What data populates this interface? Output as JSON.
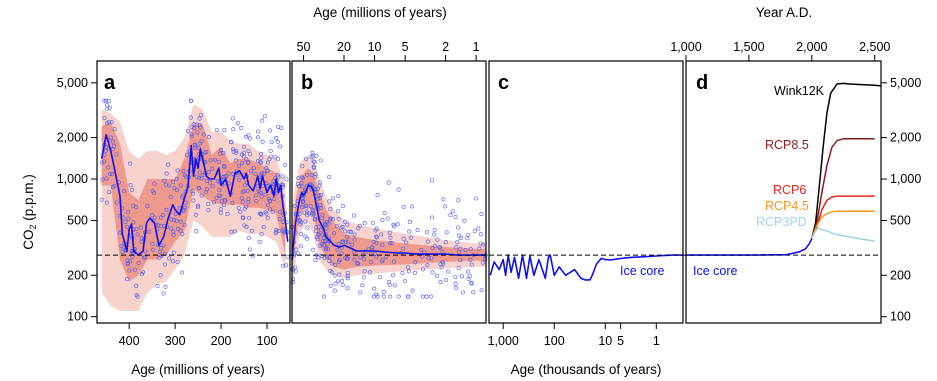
{
  "chart_data": {
    "type": "line",
    "y_axis": {
      "label": "CO2 (p.p.m.)",
      "label_main": "CO",
      "label_sub": "2",
      "label_rest": " (p.p.m.)",
      "scale": "log",
      "ylim": [
        90,
        7200
      ],
      "ticks": [
        100,
        200,
        500,
        1000,
        2000,
        5000
      ],
      "tick_labels": [
        "100",
        "200",
        "500",
        "1,000",
        "2,000",
        "5,000"
      ],
      "reference_line": 280
    },
    "panels": [
      {
        "label": "a",
        "x_label": "Age (millions of years)",
        "x_unit": "Myr ago",
        "xlim": [
          470,
          50
        ],
        "x_ticks": [
          400,
          300,
          200,
          100
        ],
        "x_tick_labels": [
          "400",
          "300",
          "200",
          "100"
        ],
        "series": [
          {
            "name": "",
            "color": "#1010ee",
            "x": [
              460,
              450,
              440,
              430,
              420,
              415,
              405,
              400,
              395,
              390,
              380,
              370,
              362,
              355,
              345,
              335,
              325,
              315,
              305,
              300,
              290,
              280,
              272,
              265,
              260,
              255,
              250,
              245,
              240,
              232,
              225,
              215,
              205,
              200,
              190,
              180,
              170,
              160,
              150,
              145,
              140,
              130,
              120,
              115,
              110,
              100,
              92,
              85,
              80,
              75,
              70,
              65,
              60,
              55
            ],
            "y": [
              1400,
              2100,
              1600,
              1100,
              750,
              400,
              300,
              430,
              470,
              300,
              280,
              300,
              480,
              520,
              480,
              330,
              380,
              520,
              650,
              600,
              550,
              720,
              880,
              1750,
              1050,
              1400,
              1200,
              1650,
              1400,
              1050,
              1000,
              1000,
              1200,
              900,
              1000,
              750,
              1100,
              1150,
              1000,
              1100,
              900,
              820,
              1050,
              850,
              1050,
              800,
              900,
              750,
              1000,
              800,
              900,
              620,
              500,
              350
            ]
          }
        ],
        "uncertainty_band": {
          "x": [
            460,
            440,
            420,
            400,
            380,
            360,
            340,
            320,
            300,
            280,
            260,
            240,
            220,
            200,
            180,
            160,
            140,
            120,
            100,
            80,
            60
          ],
          "inner_low": [
            900,
            900,
            260,
            180,
            200,
            260,
            260,
            280,
            350,
            420,
            850,
            750,
            680,
            650,
            650,
            650,
            620,
            620,
            600,
            560,
            280
          ],
          "inner_high": [
            2400,
            2600,
            1800,
            800,
            700,
            1000,
            1000,
            1000,
            1000,
            1400,
            2500,
            2500,
            1500,
            1700,
            1300,
            1400,
            1400,
            1300,
            1200,
            1100,
            650
          ],
          "outer_low": [
            150,
            120,
            110,
            110,
            110,
            150,
            170,
            180,
            220,
            280,
            500,
            450,
            380,
            380,
            380,
            420,
            400,
            400,
            380,
            350,
            220
          ],
          "outer_high": [
            3200,
            3000,
            2600,
            1600,
            1400,
            1600,
            1600,
            1500,
            1600,
            2000,
            3500,
            3200,
            2200,
            2200,
            1900,
            1800,
            1800,
            1600,
            1500,
            1400,
            900
          ]
        },
        "scatter_summary": "proxy estimates (blue circles), roughly 150-3700 ppm"
      },
      {
        "label": "b",
        "x_label": "Age (millions of years)",
        "x_unit": "Myr ago",
        "x_scale": "log",
        "xlim": [
          65,
          0.8
        ],
        "x_ticks": [
          50,
          20,
          10,
          5,
          2,
          1
        ],
        "x_tick_labels": [
          "50",
          "20",
          "10",
          "5",
          "2",
          "1"
        ],
        "series": [
          {
            "name": "",
            "color": "#1010ee",
            "x": [
              65,
              60,
              55,
              52,
              50,
              47,
              45,
              42,
              40,
              37,
              35,
              32,
              30,
              27,
              25,
              22,
              20,
              18,
              15,
              12,
              10,
              8,
              6,
              5,
              4,
              3,
              2.5,
              2,
              1.5,
              1.2,
              1,
              0.8
            ],
            "y": [
              260,
              480,
              700,
              800,
              760,
              820,
              900,
              880,
              820,
              620,
              500,
              440,
              380,
              350,
              330,
              320,
              330,
              320,
              300,
              300,
              300,
              295,
              290,
              290,
              285,
              285,
              285,
              285,
              280,
              280,
              280,
              280
            ]
          }
        ],
        "uncertainty_band": {
          "x": [
            65,
            60,
            55,
            50,
            45,
            40,
            35,
            30,
            25,
            20,
            15,
            10,
            5,
            2,
            1,
            0.8
          ],
          "inner_low": [
            200,
            350,
            550,
            600,
            650,
            550,
            330,
            270,
            230,
            220,
            230,
            235,
            240,
            250,
            255,
            255
          ],
          "inner_high": [
            420,
            700,
            950,
            1100,
            1200,
            1100,
            800,
            600,
            480,
            400,
            380,
            360,
            340,
            320,
            310,
            310
          ],
          "outer_low": [
            150,
            250,
            400,
            450,
            480,
            400,
            260,
            220,
            200,
            190,
            200,
            205,
            215,
            225,
            230,
            230
          ],
          "outer_high": [
            600,
            900,
            1300,
            1400,
            1500,
            1400,
            1000,
            750,
            600,
            500,
            470,
            440,
            400,
            360,
            340,
            340
          ]
        },
        "scatter_summary": "proxy estimates (blue circles), roughly 150-2500 ppm"
      },
      {
        "label": "c",
        "x_label": "Age (thousands of years)",
        "x_unit": "kyr ago",
        "x_scale": "log",
        "xlim": [
          1900,
          0.3
        ],
        "x_ticks": [
          1000,
          100,
          10,
          5,
          1
        ],
        "x_tick_labels": [
          "1,000",
          "100",
          "10",
          "5",
          "1"
        ],
        "series": [
          {
            "name": "Ice core",
            "color": "#1010ee",
            "x": [
              1800,
              1500,
              1200,
              1000,
              900,
              800,
              700,
              600,
              500,
              420,
              350,
              300,
              250,
              200,
              150,
              130,
              120,
              100,
              80,
              60,
              40,
              30,
              25,
              20,
              18,
              15,
              12,
              10,
              8,
              6,
              5,
              3,
              2,
              1,
              0.5,
              0.3
            ],
            "y": [
              200,
              250,
              220,
              260,
              200,
              280,
              210,
              270,
              190,
              280,
              190,
              275,
              200,
              260,
              190,
              270,
              280,
              200,
              230,
              200,
              220,
              190,
              185,
              185,
              200,
              240,
              265,
              260,
              258,
              262,
              265,
              270,
              272,
              276,
              280,
              280
            ]
          }
        ],
        "annotations": [
          "Ice core"
        ]
      },
      {
        "label": "d",
        "x_label": "Year A.D.",
        "x_unit": "Year A.D.",
        "xlim": [
          1000,
          2550
        ],
        "x_ticks": [
          1000,
          1500,
          2000,
          2500
        ],
        "x_tick_labels": [
          "1,000",
          "1,500",
          "2,000",
          "2,500"
        ],
        "right_axis_ticks": [
          "100",
          "200",
          "500",
          "1,000",
          "2,000",
          "5,000"
        ],
        "series": [
          {
            "name": "Ice core",
            "color": "#1010ee",
            "x": [
              1000,
              1500,
              1800,
              1900,
              1950,
              1980,
              2000,
              2010
            ],
            "y": [
              280,
              280,
              282,
              296,
              311,
              339,
              369,
              390
            ]
          },
          {
            "name": "Wink12K",
            "color": "#000000",
            "x": [
              2000,
              2030,
              2060,
              2090,
              2120,
              2150,
              2200,
              2250,
              2300,
              2400,
              2500,
              2550
            ],
            "y": [
              370,
              480,
              900,
              1700,
              3000,
              4200,
              4900,
              4950,
              4900,
              4850,
              4800,
              4750
            ]
          },
          {
            "name": "RCP8.5",
            "color": "#8b1a1a",
            "x": [
              2000,
              2040,
              2080,
              2120,
              2160,
              2200,
              2250,
              2300,
              2400,
              2500
            ],
            "y": [
              370,
              480,
              800,
              1250,
              1700,
              1900,
              1960,
              1962,
              1962,
              1962
            ]
          },
          {
            "name": "RCP6",
            "color": "#e8241c",
            "x": [
              2000,
              2040,
              2080,
              2120,
              2160,
              2200,
              2300,
              2400,
              2500
            ],
            "y": [
              370,
              450,
              600,
              700,
              740,
              752,
              752,
              752,
              752
            ]
          },
          {
            "name": "RCP4.5",
            "color": "#f19a1c",
            "x": [
              2000,
              2040,
              2080,
              2120,
              2160,
              2200,
              2300,
              2400,
              2500
            ],
            "y": [
              370,
              460,
              530,
              560,
              578,
              583,
              583,
              583,
              583
            ]
          },
          {
            "name": "RCP3PD",
            "color": "#9fd3e8",
            "x": [
              2000,
              2030,
              2050,
              2080,
              2120,
              2160,
              2200,
              2300,
              2400,
              2500
            ],
            "y": [
              370,
              420,
              440,
              430,
              420,
              405,
              395,
              380,
              365,
              355
            ]
          }
        ],
        "annotations": [
          "Ice core"
        ]
      }
    ]
  }
}
